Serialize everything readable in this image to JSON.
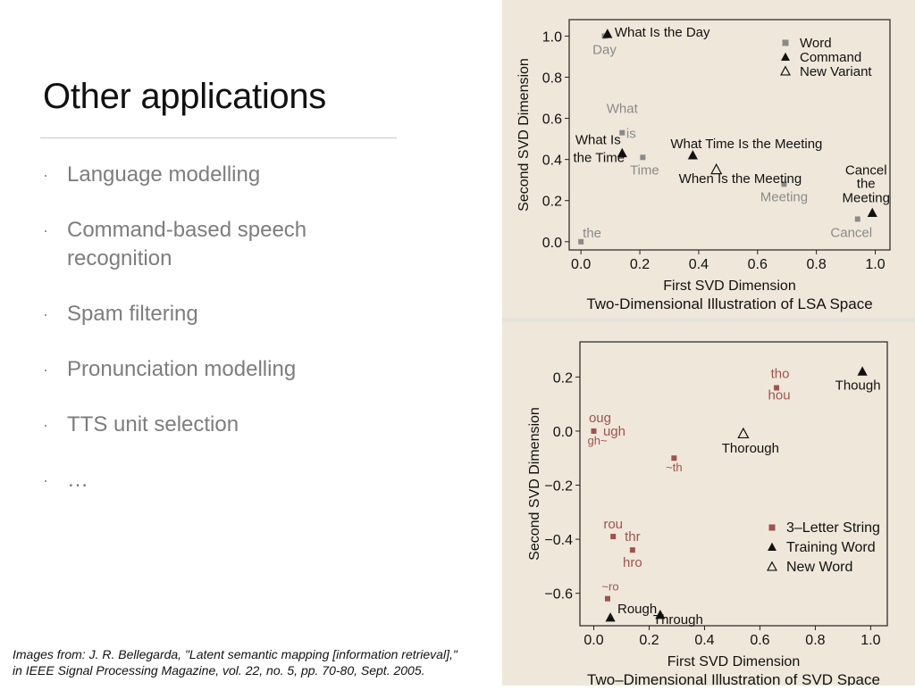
{
  "slide": {
    "title": "Other applications",
    "bullets": [
      "Language modelling",
      "Command-based speech recognition",
      "Spam filtering",
      "Pronunciation modelling",
      "TTS unit selection",
      "…"
    ],
    "bullet_glyph": "·",
    "citation_line1": "Images from: J. R. Bellegarda, \"Latent semantic mapping [information retrieval],\"",
    "citation_line2": "in IEEE Signal Processing Magazine, vol. 22, no. 5, pp. 70-80, Sept. 2005."
  },
  "colors": {
    "figure_bg": "#efe8da",
    "word_gray": "#8a8a8a",
    "letter_red": "#a0524f",
    "ink": "#111111",
    "bullet_text": "#7d7d7d"
  },
  "chart_data": [
    {
      "type": "scatter",
      "title": "Two-Dimensional Illustration of LSA Space",
      "xlabel": "First SVD Dimension",
      "ylabel": "Second SVD Dimension",
      "xlim": [
        -0.04,
        1.05
      ],
      "ylim": [
        -0.04,
        1.08
      ],
      "xticks": [
        0.0,
        0.2,
        0.4,
        0.6,
        0.8,
        1.0
      ],
      "yticks": [
        0.0,
        0.2,
        0.4,
        0.6,
        0.8,
        1.0
      ],
      "tick_labels_x": [
        "0.0",
        "0.2",
        "0.4",
        "0.6",
        "0.8",
        "1.0"
      ],
      "tick_labels_y": [
        "0.0",
        "0.2",
        "0.4",
        "0.6",
        "0.8",
        "1.0"
      ],
      "legend_position": "top-right",
      "legend": [
        {
          "label": "Word",
          "marker": "square",
          "color": "#8a8a8a"
        },
        {
          "label": "Command",
          "marker": "filled-triangle",
          "color": "#111111"
        },
        {
          "label": "New Variant",
          "marker": "open-triangle",
          "color": "#111111"
        }
      ],
      "series": [
        {
          "name": "Word",
          "marker": "square",
          "color": "#8a8a8a",
          "points": [
            {
              "x": 0.0,
              "y": 0.0,
              "label": "the",
              "dx": 2,
              "dy": -5,
              "anchor": "start"
            },
            {
              "x": 0.08,
              "y": 1.0,
              "label": "Day",
              "dx": 0,
              "dy": 20,
              "anchor": "middle"
            },
            {
              "x": 0.14,
              "y": 0.53,
              "label": "is",
              "dx": 10,
              "dy": 6,
              "anchor": "middle"
            },
            {
              "x": 0.21,
              "y": 0.41,
              "label": "Time",
              "dx": 2,
              "dy": 19,
              "anchor": "middle"
            },
            {
              "x": 0.69,
              "y": 0.28,
              "label": "Meeting",
              "dx": 0,
              "dy": 19,
              "anchor": "middle"
            },
            {
              "x": 0.94,
              "y": 0.11,
              "label": "Cancel",
              "dx": -7,
              "dy": 20,
              "anchor": "middle"
            }
          ]
        },
        {
          "name": "Command",
          "marker": "filled-triangle",
          "color": "#111111",
          "points": [
            {
              "x": 0.09,
              "y": 1.01,
              "label": "What Is the Day",
              "dx": 8,
              "dy": 3,
              "anchor": "start"
            },
            {
              "x": 0.14,
              "y": 0.43,
              "label": "",
              "dx": 0,
              "dy": 0,
              "anchor": "middle"
            },
            {
              "x": 0.38,
              "y": 0.42,
              "label": "What Time Is the Meeting",
              "dx": -25,
              "dy": -8,
              "anchor": "start"
            },
            {
              "x": 0.99,
              "y": 0.14,
              "label": "",
              "dx": 0,
              "dy": 0,
              "anchor": "middle"
            }
          ]
        },
        {
          "name": "New Variant",
          "marker": "open-triangle",
          "color": "#111111",
          "points": [
            {
              "x": 0.46,
              "y": 0.35,
              "label": "When Is the Meeting",
              "dx": -42,
              "dy": 15,
              "anchor": "start"
            }
          ]
        }
      ],
      "free_labels": [
        {
          "x": 0.14,
          "y": 0.43,
          "text": "What",
          "dx": 0,
          "dy": -45,
          "anchor": "middle",
          "color": "#8a8a8a"
        },
        {
          "x": 0.14,
          "y": 0.43,
          "text": "What Is",
          "dx": -27,
          "dy": -10,
          "anchor": "middle",
          "color": "#111111"
        },
        {
          "x": 0.14,
          "y": 0.43,
          "text": "the Time",
          "dx": -26,
          "dy": 10,
          "anchor": "middle",
          "color": "#111111"
        },
        {
          "x": 0.99,
          "y": 0.14,
          "text": "Cancel",
          "dx": -7,
          "dy": -43,
          "anchor": "middle",
          "color": "#111111"
        },
        {
          "x": 0.99,
          "y": 0.14,
          "text": "the",
          "dx": -7,
          "dy": -28,
          "anchor": "middle",
          "color": "#111111"
        },
        {
          "x": 0.99,
          "y": 0.14,
          "text": "Meeting",
          "dx": -7,
          "dy": -12,
          "anchor": "middle",
          "color": "#111111"
        }
      ]
    },
    {
      "type": "scatter",
      "title": "Two–Dimensional Illustration of SVD Space",
      "xlabel": "First SVD Dimension",
      "ylabel": "Second SVD Dimension",
      "xlim": [
        -0.05,
        1.06
      ],
      "ylim": [
        -0.72,
        0.33
      ],
      "xticks": [
        0.0,
        0.2,
        0.4,
        0.6,
        0.8,
        1.0
      ],
      "yticks": [
        -0.6,
        -0.4,
        -0.2,
        0.0,
        0.2
      ],
      "tick_labels_x": [
        "0.0",
        "0.2",
        "0.4",
        "0.6",
        "0.8",
        "1.0"
      ],
      "tick_labels_y": [
        "−0.6",
        "−0.4",
        "−0.2",
        "0.0",
        "0.2"
      ],
      "legend_position": "bottom-right",
      "legend": [
        {
          "label": "3–Letter String",
          "marker": "square",
          "color": "#a0524f"
        },
        {
          "label": "Training Word",
          "marker": "filled-triangle",
          "color": "#111111"
        },
        {
          "label": "New Word",
          "marker": "open-triangle",
          "color": "#111111"
        }
      ],
      "series": [
        {
          "name": "3–Letter String",
          "marker": "square",
          "color": "#a0524f",
          "points": [
            {
              "x": 0.0,
              "y": 0.0,
              "label": "gh~",
              "dx": -7,
              "dy": 15,
              "anchor": "start",
              "small": true
            },
            {
              "x": 0.29,
              "y": -0.1,
              "label": "~th",
              "dx": 0,
              "dy": 15,
              "anchor": "middle",
              "small": true
            },
            {
              "x": 0.07,
              "y": -0.39,
              "label": "rou",
              "dx": 0,
              "dy": -9,
              "anchor": "middle"
            },
            {
              "x": 0.14,
              "y": -0.44,
              "label": "hro",
              "dx": 0,
              "dy": 19,
              "anchor": "middle"
            },
            {
              "x": 0.05,
              "y": -0.62,
              "label": "~ro",
              "dx": 3,
              "dy": -9,
              "anchor": "middle",
              "small": true
            },
            {
              "x": 0.66,
              "y": 0.16,
              "label": "hou",
              "dx": 3,
              "dy": 13,
              "anchor": "middle"
            }
          ]
        },
        {
          "name": "Training Word",
          "marker": "filled-triangle",
          "color": "#111111",
          "points": [
            {
              "x": 0.97,
              "y": 0.22,
              "label": "Though",
              "dx": -5,
              "dy": 20,
              "anchor": "middle"
            },
            {
              "x": 0.06,
              "y": -0.69,
              "label": "Rough",
              "dx": 30,
              "dy": -5,
              "anchor": "middle"
            },
            {
              "x": 0.24,
              "y": -0.68,
              "label": "Through",
              "dx": 20,
              "dy": 10,
              "anchor": "middle"
            }
          ]
        },
        {
          "name": "New Word",
          "marker": "open-triangle",
          "color": "#111111",
          "points": [
            {
              "x": 0.54,
              "y": -0.01,
              "label": "Thorough",
              "dx": 8,
              "dy": 21,
              "anchor": "middle"
            }
          ]
        }
      ],
      "free_labels": [
        {
          "x": 0.0,
          "y": 0.0,
          "text": "oug",
          "dx": 7,
          "dy": -10,
          "anchor": "middle",
          "color": "#a0524f"
        },
        {
          "x": 0.0,
          "y": 0.0,
          "text": "ugh",
          "dx": 23,
          "dy": 5,
          "anchor": "middle",
          "color": "#a0524f"
        },
        {
          "x": 0.14,
          "y": -0.44,
          "text": "thr",
          "dx": 0,
          "dy": -10,
          "anchor": "middle",
          "color": "#a0524f"
        },
        {
          "x": 0.66,
          "y": 0.16,
          "text": "tho",
          "dx": 4,
          "dy": -11,
          "anchor": "middle",
          "color": "#a0524f"
        }
      ]
    }
  ]
}
